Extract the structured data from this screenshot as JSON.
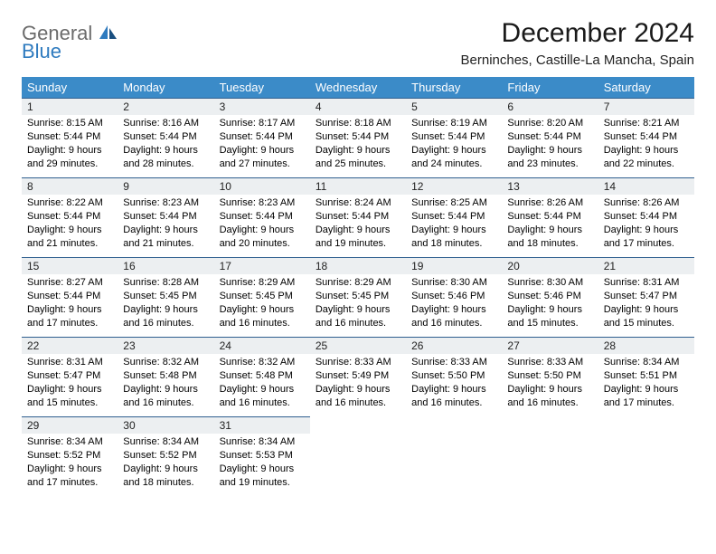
{
  "logo": {
    "text1": "General",
    "text2": "Blue"
  },
  "title": "December 2024",
  "location": "Berninches, Castille-La Mancha, Spain",
  "day_headers": [
    "Sunday",
    "Monday",
    "Tuesday",
    "Wednesday",
    "Thursday",
    "Friday",
    "Saturday"
  ],
  "colors": {
    "header_bg": "#3b8bc8",
    "header_fg": "#ffffff",
    "daynum_bg": "#eceff1",
    "rule": "#2f5f8f",
    "logo_gray": "#6b6b6b",
    "logo_blue": "#2f7bbf"
  },
  "cells": [
    {
      "n": "1",
      "sr": "8:15 AM",
      "ss": "5:44 PM",
      "dl": "9 hours and 29 minutes."
    },
    {
      "n": "2",
      "sr": "8:16 AM",
      "ss": "5:44 PM",
      "dl": "9 hours and 28 minutes."
    },
    {
      "n": "3",
      "sr": "8:17 AM",
      "ss": "5:44 PM",
      "dl": "9 hours and 27 minutes."
    },
    {
      "n": "4",
      "sr": "8:18 AM",
      "ss": "5:44 PM",
      "dl": "9 hours and 25 minutes."
    },
    {
      "n": "5",
      "sr": "8:19 AM",
      "ss": "5:44 PM",
      "dl": "9 hours and 24 minutes."
    },
    {
      "n": "6",
      "sr": "8:20 AM",
      "ss": "5:44 PM",
      "dl": "9 hours and 23 minutes."
    },
    {
      "n": "7",
      "sr": "8:21 AM",
      "ss": "5:44 PM",
      "dl": "9 hours and 22 minutes."
    },
    {
      "n": "8",
      "sr": "8:22 AM",
      "ss": "5:44 PM",
      "dl": "9 hours and 21 minutes."
    },
    {
      "n": "9",
      "sr": "8:23 AM",
      "ss": "5:44 PM",
      "dl": "9 hours and 21 minutes."
    },
    {
      "n": "10",
      "sr": "8:23 AM",
      "ss": "5:44 PM",
      "dl": "9 hours and 20 minutes."
    },
    {
      "n": "11",
      "sr": "8:24 AM",
      "ss": "5:44 PM",
      "dl": "9 hours and 19 minutes."
    },
    {
      "n": "12",
      "sr": "8:25 AM",
      "ss": "5:44 PM",
      "dl": "9 hours and 18 minutes."
    },
    {
      "n": "13",
      "sr": "8:26 AM",
      "ss": "5:44 PM",
      "dl": "9 hours and 18 minutes."
    },
    {
      "n": "14",
      "sr": "8:26 AM",
      "ss": "5:44 PM",
      "dl": "9 hours and 17 minutes."
    },
    {
      "n": "15",
      "sr": "8:27 AM",
      "ss": "5:44 PM",
      "dl": "9 hours and 17 minutes."
    },
    {
      "n": "16",
      "sr": "8:28 AM",
      "ss": "5:45 PM",
      "dl": "9 hours and 16 minutes."
    },
    {
      "n": "17",
      "sr": "8:29 AM",
      "ss": "5:45 PM",
      "dl": "9 hours and 16 minutes."
    },
    {
      "n": "18",
      "sr": "8:29 AM",
      "ss": "5:45 PM",
      "dl": "9 hours and 16 minutes."
    },
    {
      "n": "19",
      "sr": "8:30 AM",
      "ss": "5:46 PM",
      "dl": "9 hours and 16 minutes."
    },
    {
      "n": "20",
      "sr": "8:30 AM",
      "ss": "5:46 PM",
      "dl": "9 hours and 15 minutes."
    },
    {
      "n": "21",
      "sr": "8:31 AM",
      "ss": "5:47 PM",
      "dl": "9 hours and 15 minutes."
    },
    {
      "n": "22",
      "sr": "8:31 AM",
      "ss": "5:47 PM",
      "dl": "9 hours and 15 minutes."
    },
    {
      "n": "23",
      "sr": "8:32 AM",
      "ss": "5:48 PM",
      "dl": "9 hours and 16 minutes."
    },
    {
      "n": "24",
      "sr": "8:32 AM",
      "ss": "5:48 PM",
      "dl": "9 hours and 16 minutes."
    },
    {
      "n": "25",
      "sr": "8:33 AM",
      "ss": "5:49 PM",
      "dl": "9 hours and 16 minutes."
    },
    {
      "n": "26",
      "sr": "8:33 AM",
      "ss": "5:50 PM",
      "dl": "9 hours and 16 minutes."
    },
    {
      "n": "27",
      "sr": "8:33 AM",
      "ss": "5:50 PM",
      "dl": "9 hours and 16 minutes."
    },
    {
      "n": "28",
      "sr": "8:34 AM",
      "ss": "5:51 PM",
      "dl": "9 hours and 17 minutes."
    },
    {
      "n": "29",
      "sr": "8:34 AM",
      "ss": "5:52 PM",
      "dl": "9 hours and 17 minutes."
    },
    {
      "n": "30",
      "sr": "8:34 AM",
      "ss": "5:52 PM",
      "dl": "9 hours and 18 minutes."
    },
    {
      "n": "31",
      "sr": "8:34 AM",
      "ss": "5:53 PM",
      "dl": "9 hours and 19 minutes."
    }
  ],
  "labels": {
    "sunrise": "Sunrise:",
    "sunset": "Sunset:",
    "daylight": "Daylight:"
  }
}
